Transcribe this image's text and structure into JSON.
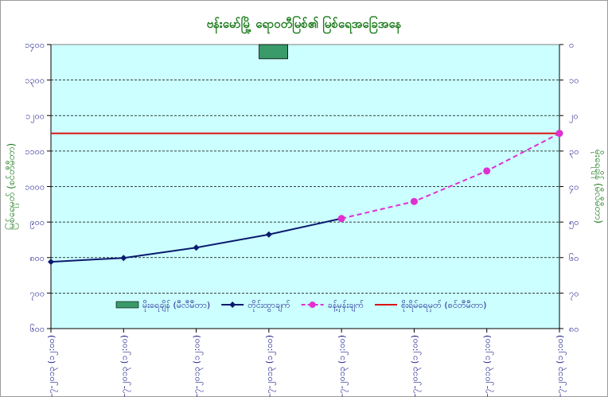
{
  "chart_data": {
    "type": "line",
    "title": "ဗန်းမော်မြို့ ရောဝတီမြစ်၏ မြစ်ရေအခြေအနေ",
    "ylabel_left": "မြစ်ရေမှတ် (စင်တီမီတာ)",
    "ylabel_right": "မိုးရေချိန် (မီလီမီတာ)",
    "categories": [
      "၉-၇-၂၀၁၃ (၁၂:၀၀)",
      "၁၀-၇-၂၀၁၃ (၁၂:၀၀)",
      "၁၁-၇-၂၀၁၃ (၁၂:၀၀)",
      "၁၂-၇-၂၀၁၃ (၁၂:၀၀)",
      "၁၃-၇-၂၀၁၃ (၁၂:၀၀)",
      "၁၄-၇-၂၀၁၃ (၁၂:၀၀)",
      "၁၅-၇-၂၀၁၃ (၁၂:၀၀)",
      "၁၆-၇-၂၀၁၃ (၁၂:၀၀)"
    ],
    "left_axis": {
      "min": 600,
      "max": 1400,
      "step": 100,
      "tick_labels": [
        "၆၀၀",
        "၇၀၀",
        "၈၀၀",
        "၉၀၀",
        "၁၀၀၀",
        "၁၁၀၀",
        "၁၂၀၀",
        "၁၃၀၀",
        "၁၄၀၀"
      ]
    },
    "right_axis": {
      "min": 0,
      "max": 80,
      "step": 10,
      "reversed": true,
      "tick_labels": [
        "၀",
        "၁၀",
        "၂၀",
        "၃၀",
        "၄၀",
        "၅၀",
        "၆၀",
        "၇၀",
        "၈၀"
      ]
    },
    "series": [
      {
        "name": "မိုးရေချိန် (မီလီမီတာ)",
        "kind": "bar",
        "axis": "right",
        "color": "#3a9a6a",
        "values": [
          null,
          null,
          null,
          4,
          null,
          null,
          null,
          null
        ]
      },
      {
        "name": "တိုင်းထွာချက်",
        "kind": "line",
        "axis": "left",
        "color": "#0a1a6e",
        "marker": "diamond",
        "values": [
          788,
          799,
          828,
          865,
          910,
          null,
          null,
          null
        ]
      },
      {
        "name": "ခန့်မှန်းချက်",
        "kind": "line-dashed",
        "axis": "left",
        "color": "#e030d0",
        "marker": "circle",
        "values": [
          null,
          null,
          null,
          null,
          910,
          958,
          1044,
          1150
        ]
      },
      {
        "name": "စိုးရိမ်ရေမှတ် (စင်တီမီတာ)",
        "kind": "hline",
        "axis": "left",
        "color": "#dd1111",
        "value": 1150
      }
    ],
    "grid": true,
    "legend_position": "bottom-inside"
  }
}
